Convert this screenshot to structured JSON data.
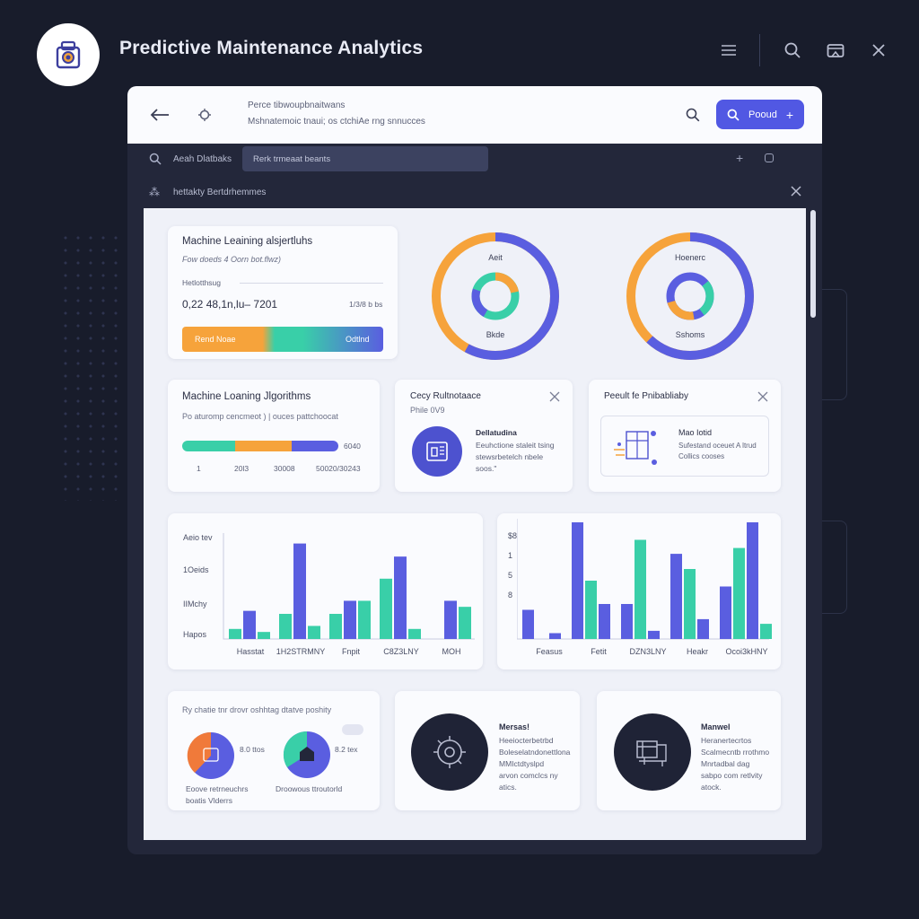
{
  "app": {
    "title": "Predictive Maintenance Analytics"
  },
  "colors": {
    "orange": "#f6a33b",
    "teal": "#39cfa8",
    "indigo": "#5a5ee0",
    "background": "#181c2b"
  },
  "icons": {
    "logo": "machine-logo-icon",
    "menu": "menu-icon",
    "search": "search-icon",
    "window": "window-icon",
    "close": "close-icon"
  },
  "header": {
    "line1": "Perce tibwoupbnaitwans",
    "line2": "Mshnatemoic tnaui; os ctchiAe rng snnucces",
    "button_label": "Pooud"
  },
  "toolbar": {
    "search_label": "Aeah Dlatbaks",
    "input_placeholder": "Rerk trmeaat beants",
    "filter_label": "hettakty Bertdrhemmes"
  },
  "card1": {
    "title": "Machine Leaining alsjertluhs",
    "subtitle": "Fow doeds 4 Oorn bot.flwz)",
    "label": "Hetlotthsug",
    "value": "0,22 48,1n,lu– 7201",
    "value_right": "1/3/8 b bs",
    "bar_left": "Rend Noae",
    "bar_right": "Odtlnd"
  },
  "donut1": {
    "label_top": "Aeit",
    "label_bottom": "Bkde",
    "outer": [
      0.42,
      0.58
    ],
    "inner": [
      0.3,
      0.45,
      0.25
    ]
  },
  "donut2": {
    "label_top": "Hoenerc",
    "label_bottom": "Sshoms",
    "outer": [
      0.38,
      0.62
    ],
    "inner": [
      0.35,
      0.3,
      0.35
    ]
  },
  "card2": {
    "title": "Machine Loaning Jlgorithms",
    "subtitle": "Po aturomp cencmeot )  | ouces pattchoocat",
    "segments": [
      0.34,
      0.36,
      0.3
    ],
    "ticks": [
      "1",
      "20l3",
      "30008",
      "50020/30243"
    ],
    "end_label": "6040"
  },
  "card3": {
    "title": "Cecy Rultnotaace",
    "subtitle": "Phile 0V9",
    "heading": "Dellatudina",
    "body1": "Eeuhctione staleit tsing",
    "body2": "stewsrbetelch nbele",
    "body3": "soos.\""
  },
  "card4": {
    "title": "Peeult fe Pnibabliaby",
    "heading": "Mao Iotid",
    "body1": "Sufestand oceuet A ltrud",
    "body2": "Collics cooses"
  },
  "chart_left": {
    "y_labels": [
      "Aeio tev",
      "1Oeids",
      "IIMchy",
      "Hapos"
    ],
    "x_labels": [
      "Hasstat",
      "1H2STRMNY",
      "Fnpit",
      "C8Z3LNY",
      "MOH"
    ]
  },
  "chart_right": {
    "y_labels": [
      "$8",
      "1",
      "5",
      "8"
    ],
    "x_labels": [
      "Feasus",
      "Fetit",
      "DZN3LNY",
      "Heakr",
      "Ocoi3kHNY"
    ]
  },
  "chart_data": [
    {
      "type": "bar",
      "categories": [
        "Hasstat",
        "1H2STRMNY",
        "Fnpit",
        "C8Z3LNY",
        "MOH"
      ],
      "ylim": [
        0,
        100
      ],
      "series": [
        {
          "values": [
            10,
            25,
            25,
            60,
            0
          ]
        },
        {
          "values": [
            28,
            95,
            38,
            82,
            38
          ]
        },
        {
          "values": [
            7,
            13,
            38,
            10,
            32
          ]
        }
      ]
    },
    {
      "type": "bar",
      "categories": [
        "Feasus",
        "Fetit",
        "DZN3LNY",
        "Heakr",
        "Ocoi3kHNY"
      ],
      "ylim": [
        0,
        100
      ],
      "series": [
        {
          "values": [
            25,
            100,
            30,
            73,
            45
          ]
        },
        {
          "values": [
            0,
            50,
            85,
            60,
            78
          ]
        },
        {
          "values": [
            5,
            30,
            7,
            17,
            100
          ]
        },
        {
          "values": [
            0,
            0,
            0,
            0,
            13
          ]
        }
      ]
    }
  ],
  "card5": {
    "title": "Ry chatie tnr drovr oshhtag dtatve poshity",
    "pie1_label": "8.0 ttos",
    "pie2_label": "8.2 tex",
    "caption1a": "Eoove retrneuchrs",
    "caption1b": "boatis Vlderrs",
    "caption2": "Droowous ttroutorld"
  },
  "card6": {
    "heading": "Mersas!",
    "lines": [
      "Heeiocterbetrbd",
      "Boleselatndonettlona",
      "MMIctdtyslpd",
      "arvon comclcs ny",
      "atics."
    ]
  },
  "card7": {
    "heading": "Manwel",
    "lines": [
      "Heranertecrtos",
      "Scalmecntb rrothmo",
      "Mnrtadbal dag",
      "sabpo com retlvity",
      "atock."
    ]
  }
}
